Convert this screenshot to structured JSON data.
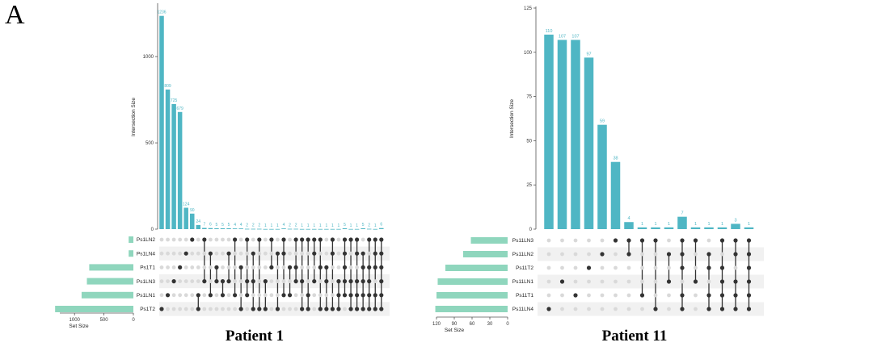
{
  "panel_label": "A",
  "chart_data": [
    {
      "type": "upset",
      "title": "Patient 1",
      "ylabel": "Intersection Size",
      "xlabel_sets": "Set Size",
      "y_ticks": [
        0,
        500,
        1000
      ],
      "ylim": [
        0,
        1300
      ],
      "set_size_ticks": [
        1000,
        500,
        0
      ],
      "set_size_lim": [
        1250,
        0
      ],
      "sets": [
        "Ps1LN2",
        "Ps1LN4",
        "Ps1T1",
        "Ps1LN3",
        "Ps1LN1",
        "Ps1T2"
      ],
      "set_sizes": [
        80,
        80,
        750,
        790,
        880,
        1330
      ],
      "intersections": [
        {
          "value": 1236,
          "label": "1236",
          "members": [
            5
          ]
        },
        {
          "value": 809,
          "label": "809",
          "members": [
            4
          ]
        },
        {
          "value": 725,
          "label": "725",
          "members": [
            3
          ]
        },
        {
          "value": 679,
          "label": "679",
          "members": [
            2
          ]
        },
        {
          "value": 124,
          "label": "124",
          "members": [
            1
          ]
        },
        {
          "value": 90,
          "label": "90",
          "members": [
            0
          ]
        },
        {
          "value": 24,
          "label": "24",
          "members": [
            4,
            5
          ]
        },
        {
          "value": 7,
          "label": "7",
          "members": [
            0,
            3
          ]
        },
        {
          "value": 6,
          "label": "6",
          "members": [
            1,
            4
          ]
        },
        {
          "value": 5,
          "label": "5",
          "members": [
            2,
            3
          ]
        },
        {
          "value": 5,
          "label": "5",
          "members": [
            3,
            4
          ]
        },
        {
          "value": 5,
          "label": "5",
          "members": [
            1,
            3
          ]
        },
        {
          "value": 4,
          "label": "4",
          "members": [
            0,
            4
          ]
        },
        {
          "value": 4,
          "label": "4",
          "members": [
            2,
            5
          ]
        },
        {
          "value": 2,
          "label": "2",
          "members": [
            0,
            3,
            4
          ]
        },
        {
          "value": 2,
          "label": "2",
          "members": [
            1,
            3,
            5
          ]
        },
        {
          "value": 2,
          "label": "2",
          "members": [
            0,
            5
          ]
        },
        {
          "value": 1,
          "label": "1",
          "members": [
            3,
            5
          ]
        },
        {
          "value": 1,
          "label": "1",
          "members": [
            0,
            2
          ]
        },
        {
          "value": 1,
          "label": "1",
          "members": [
            1,
            5
          ]
        },
        {
          "value": 4,
          "label": "4",
          "members": [
            0,
            1,
            4
          ]
        },
        {
          "value": 2,
          "label": "2",
          "members": [
            2,
            4
          ]
        },
        {
          "value": 2,
          "label": "2",
          "members": [
            0,
            2,
            3
          ]
        },
        {
          "value": 1,
          "label": "1",
          "members": [
            0,
            3,
            5
          ]
        },
        {
          "value": 1,
          "label": "1",
          "members": [
            0,
            4,
            5
          ]
        },
        {
          "value": 1,
          "label": "1",
          "members": [
            0,
            1,
            3
          ]
        },
        {
          "value": 1,
          "label": "1",
          "members": [
            0,
            2,
            5
          ]
        },
        {
          "value": 1,
          "label": "1",
          "members": [
            2,
            3,
            5
          ]
        },
        {
          "value": 1,
          "label": "1",
          "members": [
            0,
            1,
            5
          ]
        },
        {
          "value": 1,
          "label": "1",
          "members": [
            3,
            4,
            5
          ]
        },
        {
          "value": 5,
          "label": "5",
          "members": [
            0,
            1,
            2,
            3,
            4
          ]
        },
        {
          "value": 1,
          "label": "1",
          "members": [
            0,
            3,
            4,
            5
          ]
        },
        {
          "value": 1,
          "label": "1",
          "members": [
            0,
            1,
            3,
            4,
            5
          ]
        },
        {
          "value": 5,
          "label": "5",
          "members": [
            1,
            2,
            3,
            4,
            5
          ]
        },
        {
          "value": 2,
          "label": "2",
          "members": [
            0,
            2,
            3,
            4,
            5
          ]
        },
        {
          "value": 1,
          "label": "1",
          "members": [
            0,
            1,
            2,
            4,
            5
          ]
        },
        {
          "value": 6,
          "label": "6",
          "members": [
            0,
            1,
            2,
            3,
            4,
            5
          ]
        }
      ]
    },
    {
      "type": "upset",
      "title": "Patient 11",
      "ylabel": "Intersection Size",
      "xlabel_sets": "Set Size",
      "y_ticks": [
        0,
        25,
        50,
        75,
        100,
        125
      ],
      "ylim": [
        0,
        125
      ],
      "set_size_ticks": [
        120,
        90,
        60,
        30,
        0
      ],
      "set_size_lim": [
        120,
        0
      ],
      "sets": [
        "Ps11LN3",
        "Ps11LN2",
        "Ps11T2",
        "Ps11LN1",
        "Ps11T1",
        "Ps11LN4"
      ],
      "set_sizes": [
        62,
        75,
        105,
        118,
        120,
        122
      ],
      "intersections": [
        {
          "value": 110,
          "label": "110",
          "members": [
            5
          ]
        },
        {
          "value": 107,
          "label": "107",
          "members": [
            3
          ]
        },
        {
          "value": 107,
          "label": "107",
          "members": [
            4
          ]
        },
        {
          "value": 97,
          "label": "97",
          "members": [
            2
          ]
        },
        {
          "value": 59,
          "label": "59",
          "members": [
            1
          ]
        },
        {
          "value": 38,
          "label": "38",
          "members": [
            0
          ]
        },
        {
          "value": 4,
          "label": "4",
          "members": [
            0,
            1
          ]
        },
        {
          "value": 1,
          "label": "1",
          "members": [
            0,
            4
          ]
        },
        {
          "value": 1,
          "label": "1",
          "members": [
            0,
            5
          ]
        },
        {
          "value": 1,
          "label": "1",
          "members": [
            1,
            3
          ]
        },
        {
          "value": 7,
          "label": "7",
          "members": [
            0,
            1,
            2,
            4,
            5
          ]
        },
        {
          "value": 1,
          "label": "1",
          "members": [
            0,
            3
          ]
        },
        {
          "value": 1,
          "label": "1",
          "members": [
            1,
            2,
            4,
            5
          ]
        },
        {
          "value": 1,
          "label": "1",
          "members": [
            0,
            2,
            3,
            4,
            5
          ]
        },
        {
          "value": 3,
          "label": "3",
          "members": [
            0,
            1,
            3,
            4,
            5
          ]
        },
        {
          "value": 1,
          "label": "1",
          "members": [
            0,
            1,
            2,
            3,
            4,
            5
          ]
        }
      ]
    }
  ]
}
